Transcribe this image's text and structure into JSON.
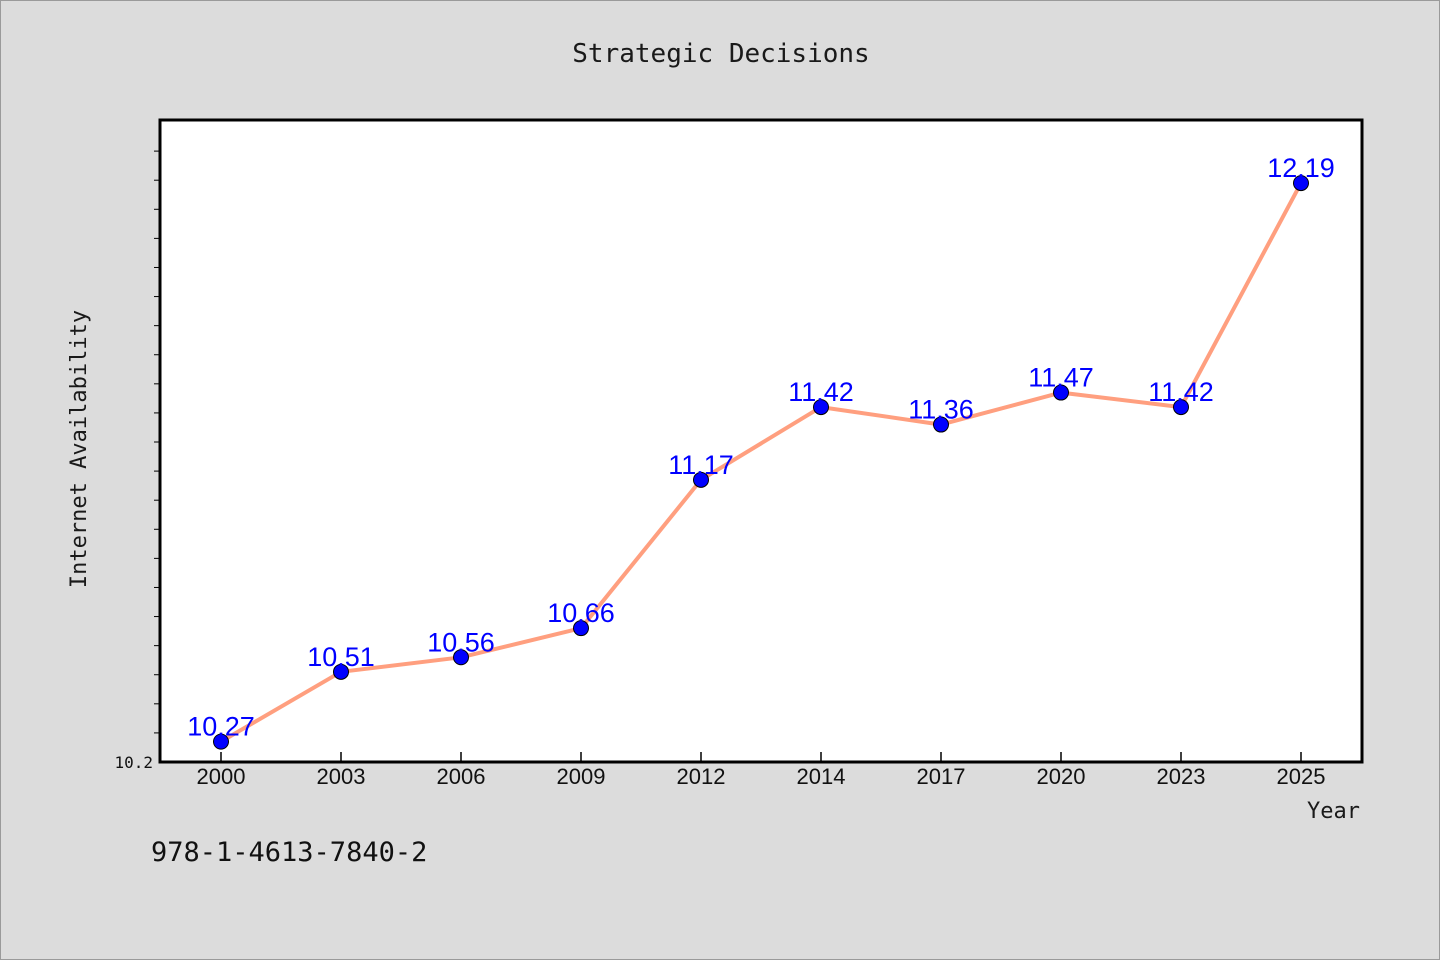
{
  "chart_data": {
    "type": "line",
    "title": "Strategic Decisions",
    "xlabel": "Year",
    "ylabel": "Internet Availability",
    "categories": [
      "2000",
      "2003",
      "2006",
      "2009",
      "2012",
      "2014",
      "2017",
      "2020",
      "2023",
      "2025"
    ],
    "series": [
      {
        "values": [
          10.27,
          10.51,
          10.56,
          10.66,
          11.17,
          11.42,
          11.36,
          11.47,
          11.42,
          12.19
        ]
      }
    ],
    "data_labels": [
      "10.27",
      "10.51",
      "10.56",
      "10.66",
      "11.17",
      "11.42",
      "11.36",
      "11.47",
      "11.42",
      "12.19"
    ],
    "ylim": [
      10.2,
      12.4
    ],
    "ytick_labels": [
      "10.2"
    ],
    "ytick_minor_step": 0.1,
    "grid": false,
    "colors": {
      "line": "#ff9f7f",
      "marker": "#0000ff",
      "data_label": "#0000ff",
      "plot_background": "#ffffff",
      "figure_background": "#dcdcdc"
    }
  },
  "footer": {
    "isbn": "978-1-4613-7840-2"
  }
}
